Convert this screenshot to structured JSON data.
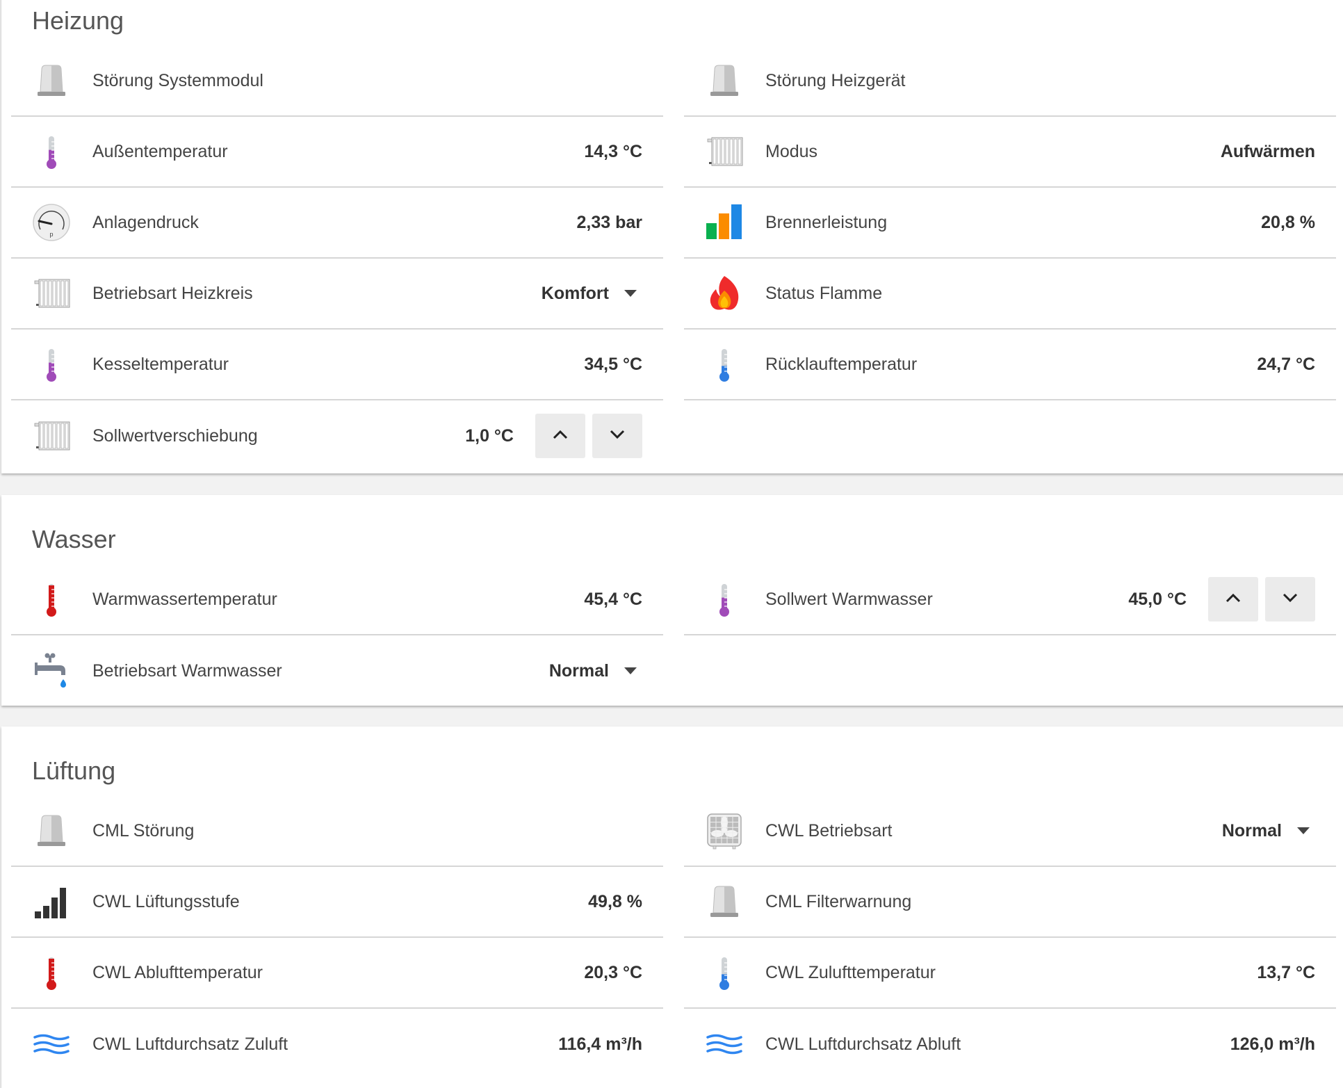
{
  "sections": [
    {
      "title": "Heizung",
      "left": [
        {
          "icon": "alarm-light-icon",
          "label": "Störung Systemmodul"
        },
        {
          "icon": "thermometer-icon",
          "icon_color": "#a04bb8",
          "level": 0.45,
          "label": "Außentemperatur",
          "value": "14,3 °C"
        },
        {
          "icon": "pressure-gauge-icon",
          "label": "Anlagendruck",
          "value": "2,33 bar"
        },
        {
          "icon": "radiator-icon",
          "label": "Betriebsart Heizkreis",
          "dropdown": "Komfort"
        },
        {
          "icon": "thermometer-icon",
          "icon_color": "#a04bb8",
          "level": 0.45,
          "label": "Kesseltemperatur",
          "value": "34,5 °C"
        },
        {
          "icon": "radiator-icon",
          "label": "Sollwertverschiebung",
          "value": "1,0 °C",
          "stepper": true
        }
      ],
      "right": [
        {
          "icon": "alarm-light-icon",
          "label": "Störung Heizgerät"
        },
        {
          "icon": "radiator-icon",
          "label": "Modus",
          "value": "Aufwärmen"
        },
        {
          "icon": "colored-bars-icon",
          "label": "Brennerleistung",
          "value": "20,8 %"
        },
        {
          "icon": "flame-icon",
          "label": "Status Flamme"
        },
        {
          "icon": "thermometer-icon",
          "icon_color": "#2f7de1",
          "level": 0.3,
          "label": "Rücklauftemperatur",
          "value": "24,7 °C"
        }
      ]
    },
    {
      "title": "Wasser",
      "left": [
        {
          "icon": "thermometer-icon",
          "icon_color": "#d21a1a",
          "level": 1.0,
          "label": "Warmwassertemperatur",
          "value": "45,4 °C"
        },
        {
          "icon": "faucet-icon",
          "label": "Betriebsart Warmwasser",
          "dropdown": "Normal"
        }
      ],
      "right": [
        {
          "icon": "thermometer-icon",
          "icon_color": "#a04bb8",
          "level": 0.45,
          "label": "Sollwert Warmwasser",
          "value": "45,0 °C",
          "stepper": true
        }
      ]
    },
    {
      "title": "Lüftung",
      "left": [
        {
          "icon": "alarm-light-icon",
          "label": "CML Störung"
        },
        {
          "icon": "signal-bars-icon",
          "label": "CWL Lüftungsstufe",
          "value": "49,8 %"
        },
        {
          "icon": "thermometer-icon",
          "icon_color": "#d21a1a",
          "level": 1.0,
          "label": "CWL Ablufttemperatur",
          "value": "20,3 °C"
        },
        {
          "icon": "air-waves-icon",
          "label": "CWL Luftdurchsatz Zuluft",
          "value": "116,4 m³/h"
        }
      ],
      "right": [
        {
          "icon": "fan-icon",
          "label": "CWL Betriebsart",
          "dropdown": "Normal"
        },
        {
          "icon": "alarm-light-icon",
          "label": "CML Filterwarnung"
        },
        {
          "icon": "thermometer-icon",
          "icon_color": "#2f7de1",
          "level": 0.3,
          "label": "CWL Zulufttemperatur",
          "value": "13,7 °C"
        },
        {
          "icon": "air-waves-icon",
          "label": "CWL Luftdurchsatz Abluft",
          "value": "126,0 m³/h"
        }
      ]
    }
  ],
  "colors": {
    "background": "#f2f2f2",
    "card": "#ffffff",
    "divider": "#d6d6d6",
    "button": "#ebebeb"
  }
}
